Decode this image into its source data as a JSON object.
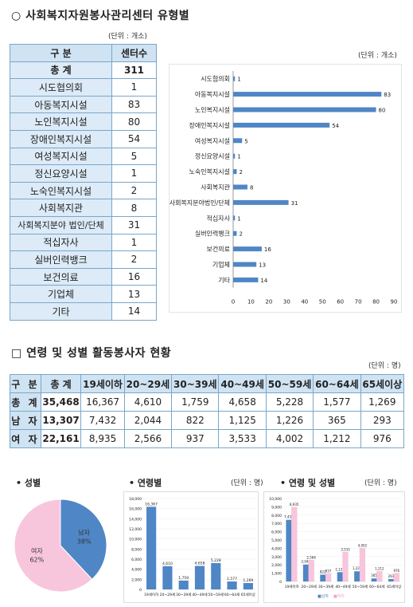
{
  "section1": {
    "title": "○ 사회복지자원봉사관리센터 유형별",
    "unit_table": "(단위 : 개소)",
    "unit_chart": "(단위 : 개소)",
    "header": [
      "구 분",
      "센터수"
    ],
    "total": {
      "label": "총 계",
      "value": "311"
    },
    "rows": [
      {
        "label": "시도협의회",
        "value": "1"
      },
      {
        "label": "아동복지시설",
        "value": "83"
      },
      {
        "label": "노인복지시설",
        "value": "80"
      },
      {
        "label": "장애인복지시설",
        "value": "54"
      },
      {
        "label": "여성복지시설",
        "value": "5"
      },
      {
        "label": "정신요양시설",
        "value": "1"
      },
      {
        "label": "노숙인복지시설",
        "value": "2"
      },
      {
        "label": "사회복지관",
        "value": "8"
      },
      {
        "label": "사회복지분야 법인/단체",
        "value": "31"
      },
      {
        "label": "적십자사",
        "value": "1"
      },
      {
        "label": "실버인력뱅크",
        "value": "2"
      },
      {
        "label": "보건의료",
        "value": "16"
      },
      {
        "label": "기업체",
        "value": "13"
      },
      {
        "label": "기타",
        "value": "14"
      }
    ]
  },
  "chart_data": [
    {
      "type": "bar",
      "orientation": "horizontal",
      "categories": [
        "시도협의회",
        "아동복지시설",
        "노인복지시설",
        "장애인복지시설",
        "여성복지시설",
        "정신요양시설",
        "노숙인복지시설",
        "사회복지관",
        "사회복지분야법인/단체",
        "적십자사",
        "실버인력뱅크",
        "보건의료",
        "기업체",
        "기타"
      ],
      "values": [
        1,
        83,
        80,
        54,
        5,
        1,
        2,
        8,
        31,
        1,
        2,
        16,
        13,
        14
      ],
      "xlim": [
        0,
        90
      ],
      "ticks": [
        "0",
        "10",
        "20",
        "30",
        "40",
        "50",
        "60",
        "70",
        "80",
        "90"
      ],
      "color": "#4f86c6"
    },
    {
      "type": "pie",
      "labels": [
        "남자",
        "여자"
      ],
      "percent_labels": [
        "38%",
        "62%"
      ],
      "values": [
        38,
        62
      ],
      "colors": [
        "#4f86c6",
        "#f7c6dd"
      ]
    },
    {
      "type": "bar",
      "categories": [
        "19세이하",
        "20~29세",
        "30~39세",
        "40~49세",
        "50~59세",
        "60~64세",
        "65세이상"
      ],
      "values": [
        16367,
        4610,
        1759,
        4658,
        5228,
        1577,
        1269
      ],
      "data_labels": [
        "16,367",
        "4,610",
        "1,759",
        "4,658",
        "5,228",
        "1,577",
        "1,269"
      ],
      "ylim": [
        0,
        18000
      ],
      "yticks": [
        "0",
        "2,000",
        "4,000",
        "6,000",
        "8,000",
        "10,000",
        "12,000",
        "14,000",
        "16,000",
        "18,000"
      ],
      "color": "#4f86c6"
    },
    {
      "type": "bar",
      "categories": [
        "19세이하",
        "20~29세",
        "30~39세",
        "40~49세",
        "50~59세",
        "60~64세",
        "65세이상"
      ],
      "series": [
        {
          "name": "남자",
          "values": [
            7432,
            2044,
            822,
            1125,
            1226,
            365,
            293
          ],
          "labels": [
            "7,432",
            "2,044",
            "822",
            "1,125",
            "1,226",
            "365",
            "293"
          ],
          "color": "#4f86c6"
        },
        {
          "name": "여자",
          "values": [
            8935,
            2566,
            937,
            3533,
            4002,
            1212,
            976
          ],
          "labels": [
            "8,935",
            "2,566",
            "937",
            "3,533",
            "4,002",
            "1,212",
            "976"
          ],
          "color": "#f7c6dd"
        }
      ],
      "ylim": [
        0,
        10000
      ],
      "yticks": [
        "0",
        "1,000",
        "2,000",
        "3,000",
        "4,000",
        "5,000",
        "6,000",
        "7,000",
        "8,000",
        "9,000",
        "10,000"
      ],
      "legend": [
        "■남자",
        "■여자"
      ]
    }
  ],
  "section2": {
    "title": "□ 연령 및 성별 활동봉사자 현황",
    "unit": "(단위 : 명)",
    "header": [
      "구 분",
      "총 계",
      "19세이하",
      "20~29세",
      "30~39세",
      "40~49세",
      "50~59세",
      "60~64세",
      "65세이상"
    ],
    "rows": [
      {
        "label": "총 계",
        "cells": [
          "35,468",
          "16,367",
          "4,610",
          "1,759",
          "4,658",
          "5,228",
          "1,577",
          "1,269"
        ]
      },
      {
        "label": "남 자",
        "cells": [
          "13,307",
          "7,432",
          "2,044",
          "822",
          "1,125",
          "1,226",
          "365",
          "293"
        ]
      },
      {
        "label": "여 자",
        "cells": [
          "22,161",
          "8,935",
          "2,566",
          "937",
          "3,533",
          "4,002",
          "1,212",
          "976"
        ]
      }
    ]
  },
  "bottom": {
    "gender_title": "• 성별",
    "age_title": "• 연령별",
    "age_unit": "(단위 : 명)",
    "agegender_title": "• 연령 및 성별",
    "agegender_unit": "(단위 : 명)"
  }
}
